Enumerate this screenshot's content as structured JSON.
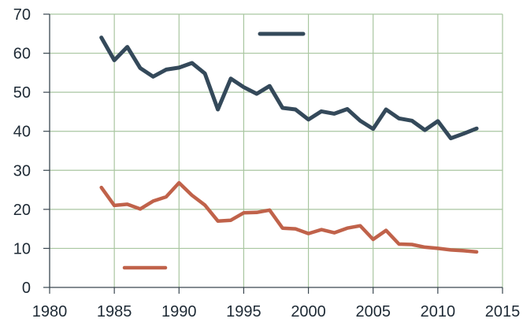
{
  "chart_data": {
    "type": "line",
    "title": "",
    "xlabel": "",
    "ylabel": "",
    "xlim": [
      1980,
      2015
    ],
    "ylim": [
      0,
      70
    ],
    "x_ticks": [
      1980,
      1985,
      1990,
      1995,
      2000,
      2005,
      2010,
      2015
    ],
    "y_ticks": [
      0,
      10,
      20,
      30,
      40,
      50,
      60,
      70
    ],
    "grid": true,
    "legend": "inside, one entry beside each line (labels not legible)",
    "series": [
      {
        "color": "#34495a",
        "x": [
          1984,
          1985,
          1986,
          1987,
          1988,
          1989,
          1990,
          1991,
          1992,
          1993,
          1994,
          1995,
          1996,
          1997,
          1998,
          1999,
          2000,
          2001,
          2002,
          2003,
          2004,
          2005,
          2006,
          2007,
          2008,
          2009,
          2010,
          2011,
          2012,
          2013
        ],
        "values": [
          64,
          58.2,
          61.6,
          56.2,
          54,
          55.8,
          56.3,
          57.5,
          54.8,
          45.6,
          53.5,
          51.3,
          49.6,
          51.6,
          46,
          45.6,
          43,
          45.1,
          44.5,
          45.7,
          42.7,
          40.6,
          45.6,
          43.3,
          42.7,
          40.3,
          42.6,
          38.2,
          39.4,
          40.7
        ]
      },
      {
        "color": "#c0624a",
        "x": [
          1984,
          1985,
          1986,
          1987,
          1988,
          1989,
          1990,
          1991,
          1992,
          1993,
          1994,
          1995,
          1996,
          1997,
          1998,
          1999,
          2000,
          2001,
          2002,
          2003,
          2004,
          2005,
          2006,
          2007,
          2008,
          2009,
          2010,
          2011,
          2012,
          2013
        ],
        "values": [
          25.6,
          21,
          21.3,
          20.1,
          22.1,
          23.2,
          26.8,
          23.6,
          21.1,
          17,
          17.2,
          19.1,
          19.2,
          19.8,
          15.2,
          15,
          13.8,
          14.8,
          14,
          15.2,
          15.8,
          12.3,
          14.6,
          11.1,
          11,
          10.3,
          10,
          9.6,
          9.4,
          9.1
        ]
      }
    ]
  }
}
